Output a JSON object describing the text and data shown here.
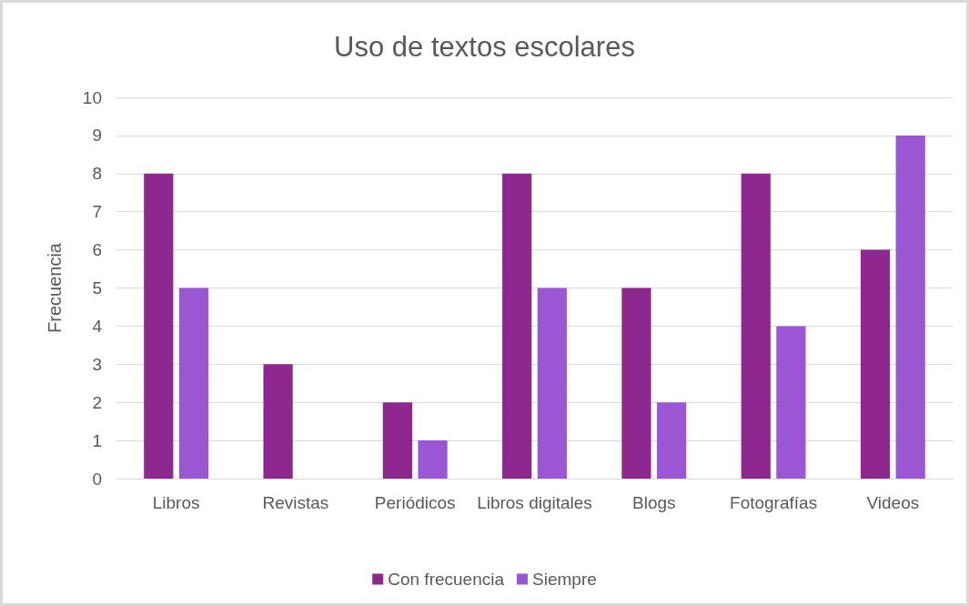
{
  "chart_data": {
    "type": "bar",
    "title": "Uso de textos escolares",
    "ylabel": "Frecuencia",
    "categories": [
      "Libros",
      "Revistas",
      "Periódicos",
      "Libros digitales",
      "Blogs",
      "Fotografías",
      "Videos"
    ],
    "series": [
      {
        "name": "Con frecuencia",
        "color": "#8e278e",
        "values": [
          8,
          3,
          2,
          8,
          5,
          8,
          6
        ]
      },
      {
        "name": "Siempre",
        "color": "#9b57d3",
        "values": [
          5,
          0,
          1,
          5,
          2,
          4,
          9
        ]
      }
    ],
    "ylim": [
      0,
      10
    ],
    "yticks": [
      0,
      1,
      2,
      3,
      4,
      5,
      6,
      7,
      8,
      9,
      10
    ],
    "grid": "y",
    "legend": "bottom"
  }
}
